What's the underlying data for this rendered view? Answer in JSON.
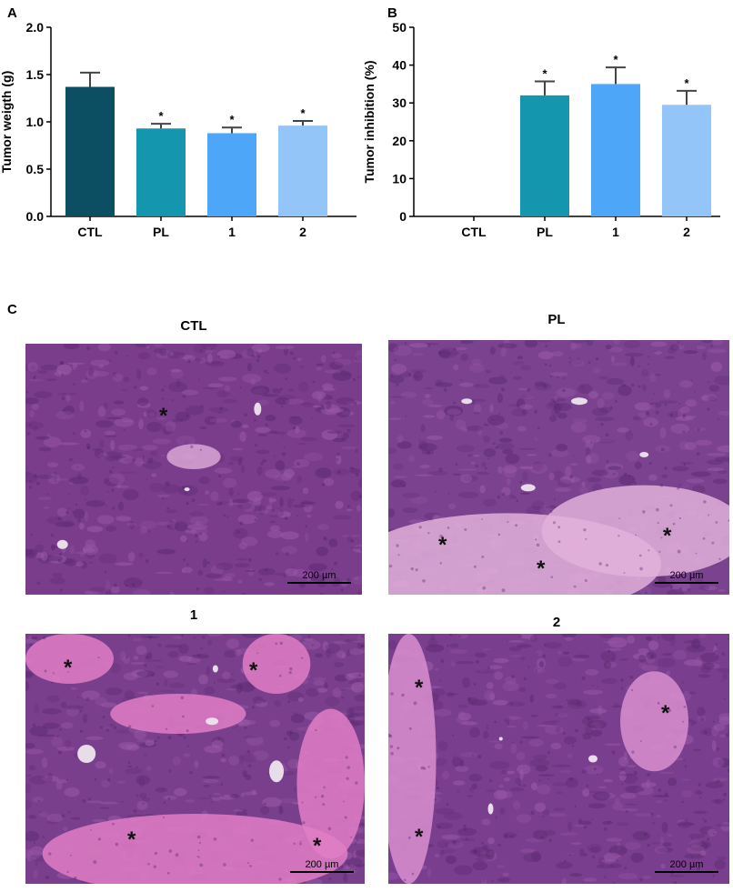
{
  "panels": {
    "A": "A",
    "B": "B",
    "C": "C"
  },
  "chart_data": [
    {
      "id": "A",
      "type": "bar",
      "ylabel": "Tumor weigth (g)",
      "xlabel": "",
      "categories": [
        "CTL",
        "PL",
        "1",
        "2"
      ],
      "values": [
        1.37,
        0.93,
        0.88,
        0.96
      ],
      "errors": [
        0.15,
        0.05,
        0.06,
        0.05
      ],
      "significance": [
        "",
        "*",
        "*",
        "*"
      ],
      "ylim": [
        0.0,
        2.0
      ],
      "yticks": [
        "0.0",
        "0.5",
        "1.0",
        "1.5",
        "2.0"
      ],
      "ytick_values": [
        0.0,
        0.5,
        1.0,
        1.5,
        2.0
      ],
      "colors": [
        "#0d4f62",
        "#1496ae",
        "#4da6f8",
        "#94c5f8"
      ],
      "grid": false
    },
    {
      "id": "B",
      "type": "bar",
      "ylabel": "Tumor inhibition (%)",
      "xlabel": "",
      "categories": [
        "CTL",
        "PL",
        "1",
        "2"
      ],
      "values": [
        0,
        32,
        35,
        29.5
      ],
      "errors": [
        0,
        3.7,
        4.4,
        3.7
      ],
      "significance": [
        "",
        "*",
        "*",
        "*"
      ],
      "ylim": [
        0,
        50
      ],
      "yticks": [
        "0",
        "10",
        "20",
        "30",
        "40",
        "50"
      ],
      "ytick_values": [
        0,
        10,
        20,
        30,
        40,
        50
      ],
      "colors": [
        "#0d4f62",
        "#1496ae",
        "#4da6f8",
        "#94c5f8"
      ],
      "grid": false
    }
  ],
  "micrographs": [
    {
      "id": "ctl",
      "title": "CTL",
      "scale": "200 µm",
      "base": "#7a3d8c",
      "necrosis": "#d9a7d6",
      "seed": 3
    },
    {
      "id": "pl",
      "title": "PL",
      "scale": "200 µm",
      "base": "#7b4290",
      "necrosis": "#e2b0da",
      "seed": 7
    },
    {
      "id": "one",
      "title": "1",
      "scale": "200 µm",
      "base": "#7a3f8c",
      "necrosis": "#e07ec5",
      "seed": 11
    },
    {
      "id": "two",
      "title": "2",
      "scale": "200 µm",
      "base": "#7a3e8e",
      "necrosis": "#d98fd0",
      "seed": 19
    }
  ],
  "necrosis_marker": "*"
}
